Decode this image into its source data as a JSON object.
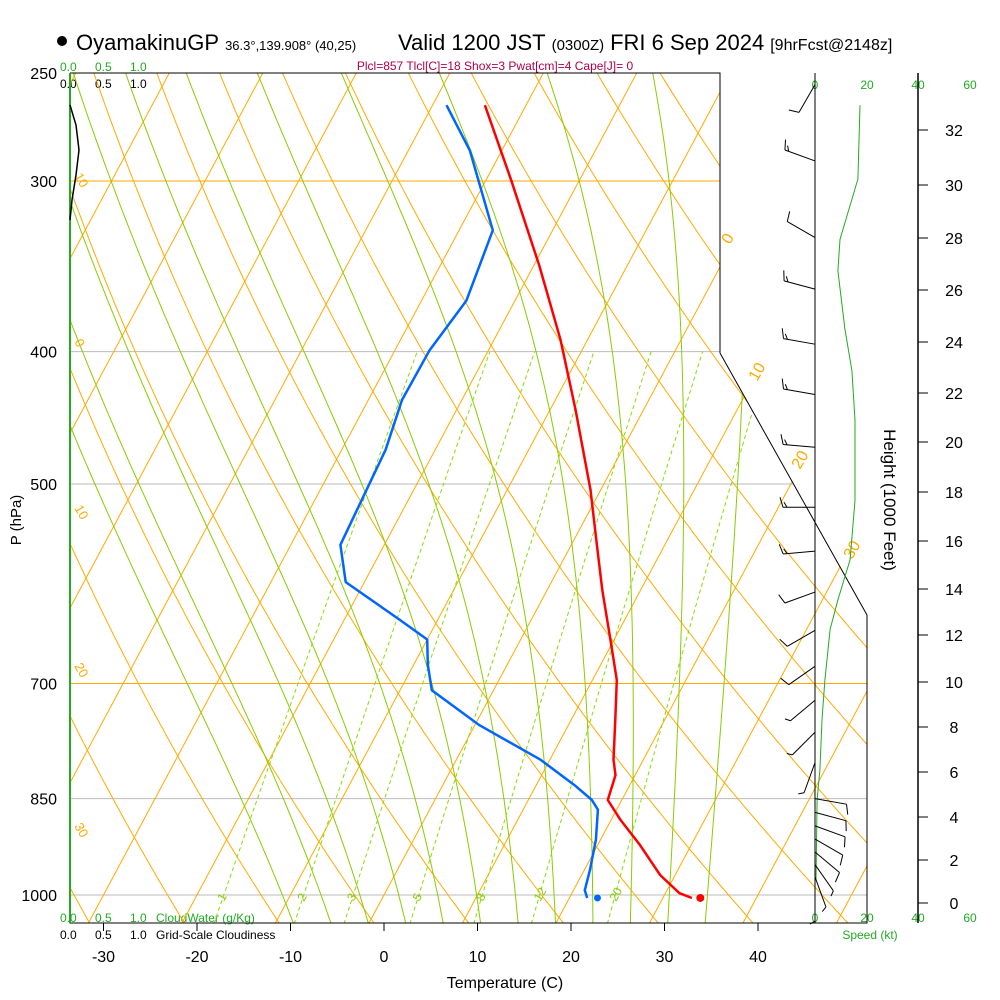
{
  "header": {
    "station": "OyamakinuGP",
    "coords": "36.3°,139.908° (40,25)",
    "valid": "Valid 1200 JST",
    "zulu": "(0300Z)",
    "date": "FRI 6 Sep 2024",
    "forecast": "[9hrFcst@2148z]",
    "indices": "Plcl=857 Tlcl[C]=18 Shox=3 Pwat[cm]=4 Cape[J]= 0"
  },
  "colors": {
    "temp": "#ff0000",
    "dew": "#0066ff",
    "isotherm": "#ffaa00",
    "moist": "#88cc00",
    "mixing": "#88dd00",
    "speed": "#22aa22",
    "indices": "#b0004a"
  },
  "cloud_scale": {
    "green_ticks": [
      "0.0",
      "0.5",
      "1.0"
    ],
    "black_ticks": [
      "0.0",
      "0.5",
      "1.0"
    ],
    "cloudwater_label": "CloudWater (g/Kg)",
    "cloudiness_label": "Grid-Scale Cloudiness"
  },
  "speed_axis": {
    "ticks": [
      "0",
      "20",
      "40",
      "60"
    ],
    "label": "Speed (kt)"
  },
  "chart_data": {
    "type": "line",
    "title": "Skew-T log-P sounding",
    "xlabel": "Temperature (C)",
    "ylabel": "P (hPa)",
    "y2label": "Height (1000 Feet)",
    "x_ticks": [
      -30,
      -20,
      -10,
      0,
      10,
      20,
      30,
      40
    ],
    "x_tick_labels": [
      "-30",
      "-20",
      "-10",
      "0",
      "10",
      "20",
      "30",
      "40"
    ],
    "p_ticks": [
      250,
      300,
      400,
      500,
      700,
      850,
      1000
    ],
    "p_tick_labels": [
      "250",
      "300",
      "400",
      "500",
      "700",
      "850",
      "1000"
    ],
    "height_ticks": [
      "0",
      "2",
      "4",
      "6",
      "8",
      "10",
      "12",
      "14",
      "16",
      "18",
      "20",
      "22",
      "24",
      "26",
      "28",
      "30",
      "32"
    ],
    "ylim": [
      1000,
      250
    ],
    "isotherm_labels": [
      "0",
      "10",
      "20",
      "30"
    ],
    "adiabat_labels": [
      "10",
      "0",
      "10",
      "20",
      "30"
    ],
    "mixing_ratio_labels": [
      "1",
      "2",
      "3",
      "5",
      "8",
      "12",
      "20"
    ],
    "series": [
      {
        "name": "Temperature",
        "color": "#ff0000",
        "p": [
          264,
          299,
          346,
          392,
          441,
          505,
          559,
          598,
          650,
          696,
          744,
          796,
          817,
          852,
          881,
          919,
          967,
          997,
          1005
        ],
        "t": [
          -34.4,
          -27.4,
          -19.4,
          -12.9,
          -7.3,
          -1.1,
          3.1,
          5.9,
          9.6,
          12.6,
          14.7,
          16.8,
          17.9,
          18.5,
          21.0,
          24.5,
          28.4,
          31.5,
          33.1
        ]
      },
      {
        "name": "Dewpoint",
        "color": "#0066ff",
        "p": [
          264,
          285,
          326,
          367,
          399,
          434,
          472,
          554,
          590,
          629,
          650,
          678,
          708,
          751,
          796,
          831,
          852,
          866,
          911,
          959,
          992,
          1005
        ],
        "t": [
          -38.5,
          -33.4,
          -26.4,
          -25.2,
          -26.3,
          -26.4,
          -25.3,
          -24.7,
          -22.0,
          -14.0,
          -10.0,
          -8.5,
          -6.6,
          0.5,
          9.0,
          14.1,
          16.8,
          18.0,
          19.5,
          20.6,
          21.2,
          21.9
        ]
      }
    ],
    "surface": {
      "temp": 34.0,
      "dewpoint": 23.0
    },
    "wind_speed": {
      "p": [
        264,
        299,
        331,
        349,
        385,
        413,
        449,
        514,
        568,
        608,
        639,
        696,
        744,
        810,
        852,
        975
      ],
      "kt": [
        17.3,
        16.5,
        9.6,
        8.8,
        11.5,
        14.2,
        15.4,
        15.4,
        13.5,
        8.8,
        5.8,
        3.8,
        2.7,
        1.9,
        0.8,
        0.4
      ]
    },
    "wind_barbs": [
      {
        "p": 255,
        "dir": 210,
        "kt": 10
      },
      {
        "p": 290,
        "dir": 290,
        "kt": 15
      },
      {
        "p": 330,
        "dir": 300,
        "kt": 10
      },
      {
        "p": 360,
        "dir": 285,
        "kt": 15
      },
      {
        "p": 395,
        "dir": 280,
        "kt": 15
      },
      {
        "p": 430,
        "dir": 280,
        "kt": 15
      },
      {
        "p": 470,
        "dir": 275,
        "kt": 15
      },
      {
        "p": 520,
        "dir": 270,
        "kt": 15
      },
      {
        "p": 560,
        "dir": 265,
        "kt": 15
      },
      {
        "p": 600,
        "dir": 250,
        "kt": 10
      },
      {
        "p": 640,
        "dir": 240,
        "kt": 10
      },
      {
        "p": 680,
        "dir": 235,
        "kt": 10
      },
      {
        "p": 720,
        "dir": 230,
        "kt": 5
      },
      {
        "p": 760,
        "dir": 225,
        "kt": 5
      },
      {
        "p": 800,
        "dir": 200,
        "kt": 5
      },
      {
        "p": 850,
        "dir": 100,
        "kt": 10
      },
      {
        "p": 870,
        "dir": 105,
        "kt": 10
      },
      {
        "p": 890,
        "dir": 110,
        "kt": 10
      },
      {
        "p": 910,
        "dir": 120,
        "kt": 10
      },
      {
        "p": 930,
        "dir": 130,
        "kt": 10
      },
      {
        "p": 950,
        "dir": 145,
        "kt": 5
      },
      {
        "p": 970,
        "dir": 160,
        "kt": 5
      },
      {
        "p": 990,
        "dir": 180,
        "kt": 5
      }
    ]
  }
}
